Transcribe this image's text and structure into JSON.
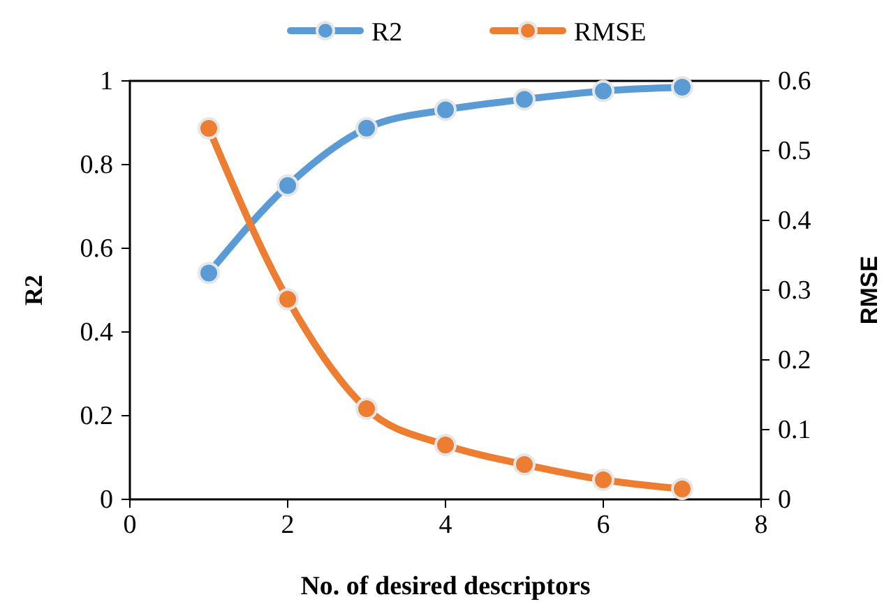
{
  "chart_data": {
    "type": "line",
    "xlabel": "No. of desired descriptors",
    "ylabel": "R2",
    "y2label": "RMSE",
    "x": [
      1,
      2,
      3,
      4,
      5,
      6,
      7
    ],
    "series": [
      {
        "name": "R2",
        "color": "#5b9bd5",
        "values": [
          0.541,
          0.75,
          0.887,
          0.931,
          0.956,
          0.976,
          0.985
        ]
      },
      {
        "name": "RMSE",
        "color": "#ed7d31",
        "axis": "y2",
        "values": [
          0.532,
          0.287,
          0.13,
          0.078,
          0.05,
          0.028,
          0.015
        ]
      }
    ],
    "xlim": [
      0,
      8
    ],
    "xticks": [
      0,
      2,
      4,
      6,
      8
    ],
    "ylim": [
      0,
      1
    ],
    "yticks": [
      0,
      0.2,
      0.4,
      0.6,
      0.8,
      1
    ],
    "y2lim": [
      0,
      0.6
    ],
    "y2ticks": [
      0,
      0.1,
      0.2,
      0.3,
      0.4,
      0.5,
      0.6
    ],
    "legend": "top",
    "marker": "circle",
    "line_style": "solid",
    "grid": false
  }
}
